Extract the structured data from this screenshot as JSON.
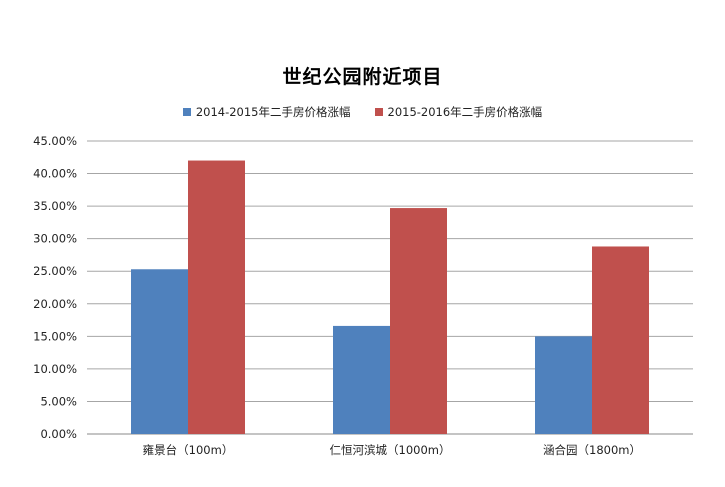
{
  "chart_data": {
    "type": "bar",
    "title": "世纪公园附近项目",
    "categories": [
      "雍景台（100m）",
      "仁恒河滨城（1000m）",
      "涵合园（1800m）"
    ],
    "series": [
      {
        "name": "2014-2015年二手房价格涨幅",
        "color": "#4f81bd",
        "values": [
          25.3,
          16.6,
          15.0
        ]
      },
      {
        "name": "2015-2016年二手房价格涨幅",
        "color": "#c0504d",
        "values": [
          42.0,
          34.7,
          28.8
        ]
      }
    ],
    "yticks": [
      "0.00%",
      "5.00%",
      "10.00%",
      "15.00%",
      "20.00%",
      "25.00%",
      "30.00%",
      "35.00%",
      "40.00%",
      "45.00%"
    ],
    "ylim": [
      0,
      45
    ],
    "grid": true,
    "legend_position": "top"
  }
}
